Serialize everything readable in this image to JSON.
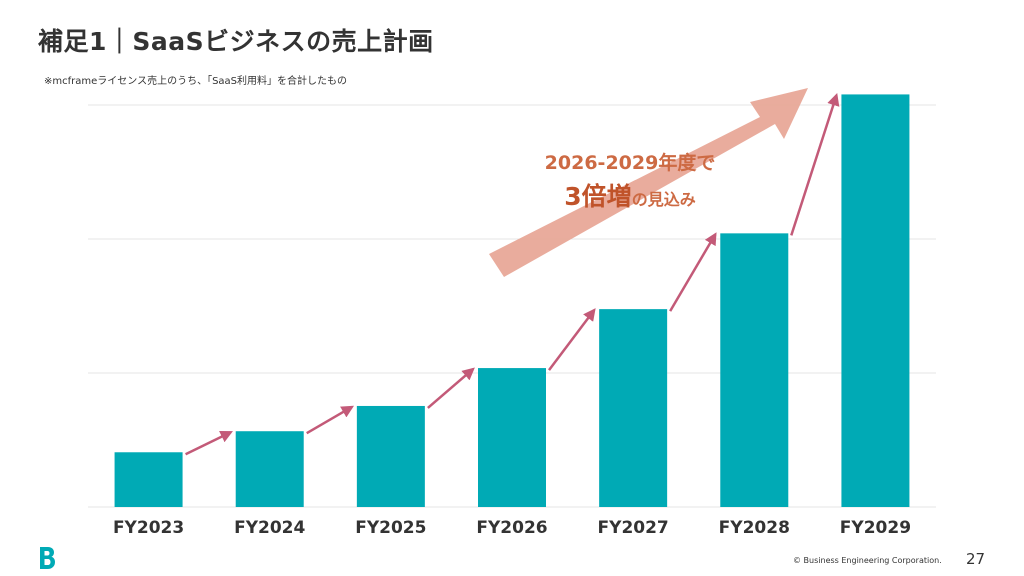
{
  "slide": {
    "title": "補足1｜SaaSビジネスの売上計画",
    "note": "※mcframeライセンス売上のうち、「SaaS利用料」を合計したもの",
    "callout_line1": "2026-2029年度で",
    "callout_big": "3倍増",
    "callout_small": "の見込み",
    "copyright": "© Business Engineering Corporation.",
    "page_number": "27",
    "logo_icon": "b-logo-icon"
  },
  "colors": {
    "bar": "#00aab5",
    "growth_arrow": "#c35a78",
    "big_arrow": "#e8a898",
    "callout_text": "#cd6a43",
    "grid": "#e6e6e6"
  },
  "chart_data": {
    "type": "bar",
    "categories": [
      "FY2023",
      "FY2024",
      "FY2025",
      "FY2026",
      "FY2027",
      "FY2028",
      "FY2029"
    ],
    "values": [
      13,
      18,
      24,
      33,
      47,
      65,
      98
    ],
    "ylim": [
      0,
      100
    ],
    "grid": true,
    "xlabel": "",
    "ylabel": "",
    "title": ""
  }
}
